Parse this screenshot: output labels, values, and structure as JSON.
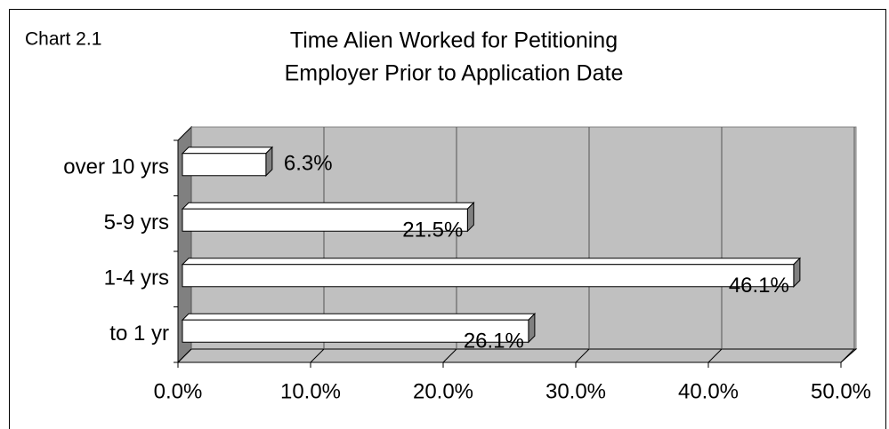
{
  "chart_label": "Chart 2.1",
  "chart_data": {
    "type": "bar3d",
    "title_lines": [
      "Time Alien Worked for Petitioning",
      "Employer Prior to Application Date"
    ],
    "categories": [
      "to 1 yr",
      "1-4 yrs",
      "5-9 yrs",
      "over 10 yrs"
    ],
    "values": [
      26.1,
      46.1,
      21.5,
      6.3
    ],
    "value_labels": [
      "26.1%",
      "46.1%",
      "21.5%",
      "6.3%"
    ],
    "color": "#ffffff",
    "xlim": [
      0,
      50
    ],
    "xticks": [
      {
        "value": 0,
        "label": "0.0%"
      },
      {
        "value": 10,
        "label": "10.0%"
      },
      {
        "value": 20,
        "label": "20.0%"
      },
      {
        "value": 30,
        "label": "30.0%"
      },
      {
        "value": 40,
        "label": "40.0%"
      },
      {
        "value": 50,
        "label": "50.0%"
      }
    ],
    "grid": true
  }
}
